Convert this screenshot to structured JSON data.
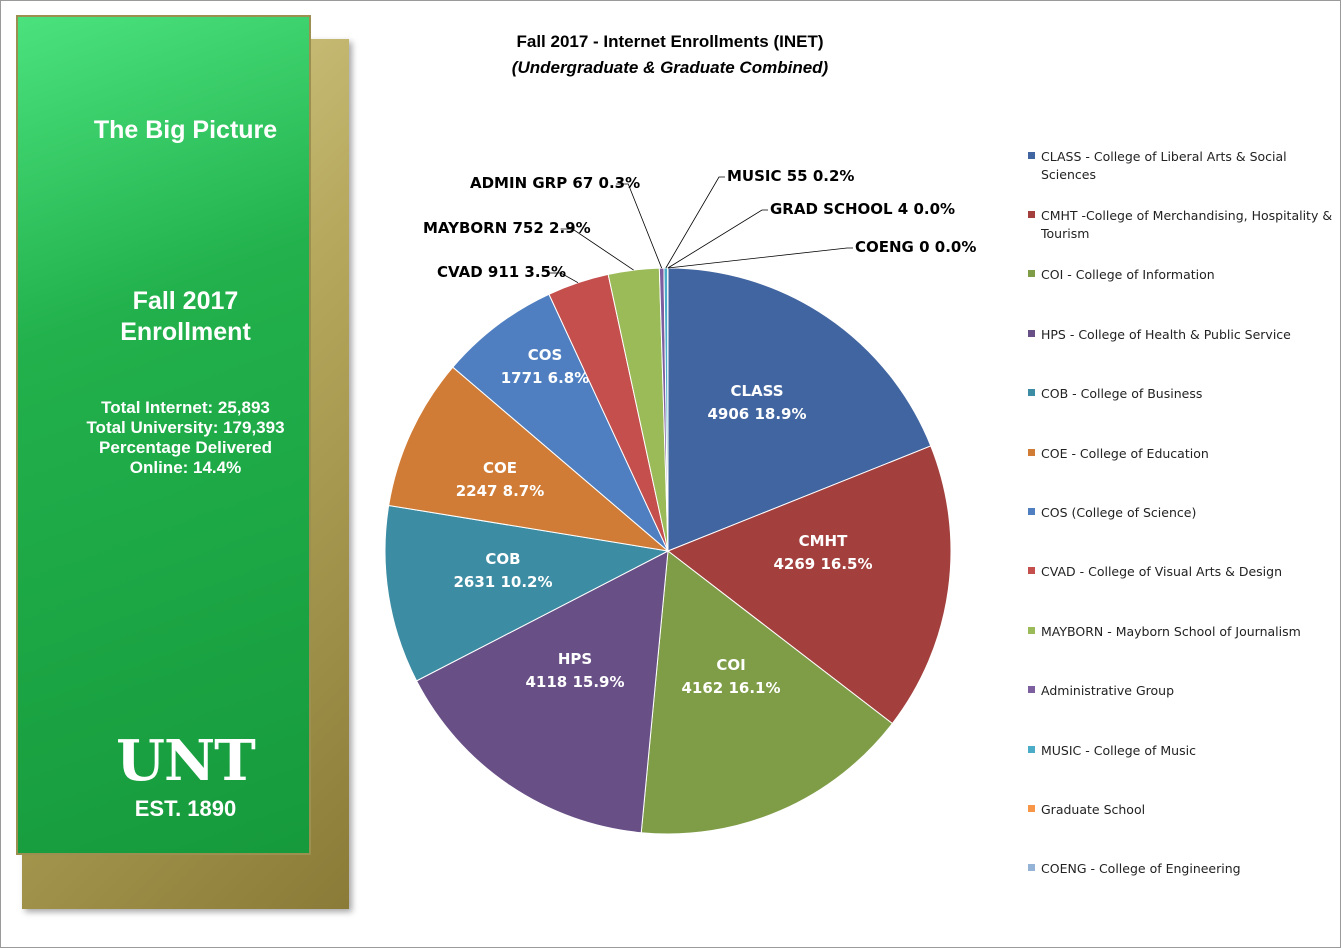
{
  "panel": {
    "heading": "The Big Picture",
    "subtitle_line1": "Fall 2017",
    "subtitle_line2": "Enrollment",
    "stat_internet": "Total Internet:  25,893",
    "stat_university": "Total University: 179,393",
    "stat_percent_line1": "Percentage Delivered",
    "stat_percent_line2": "Online: 14.4%",
    "logo_text": "UNT",
    "logo_est": "EST. 1890"
  },
  "chart_data": {
    "type": "pie",
    "title": "Fall 2017 - Internet Enrollments (INET)",
    "subtitle": "(Undergraduate & Graduate Combined)",
    "legend_position": "right",
    "slices": [
      {
        "name": "CLASS",
        "value": 4906,
        "percent": "18.9%",
        "legend": "CLASS - College of Liberal Arts & Social Sciences",
        "color": "#4165a0",
        "label_line1": "CLASS",
        "label_line2": "4906 18.9%"
      },
      {
        "name": "CMHT",
        "value": 4269,
        "percent": "16.5%",
        "legend": "CMHT -College of Merchandising, Hospitality & Tourism",
        "color": "#a3403e",
        "label_line1": "CMHT",
        "label_line2": "4269 16.5%"
      },
      {
        "name": "COI",
        "value": 4162,
        "percent": "16.1%",
        "legend": "COI - College of Information",
        "color": "#7f9c47",
        "label_line1": "COI",
        "label_line2": "4162 16.1%"
      },
      {
        "name": "HPS",
        "value": 4118,
        "percent": "15.9%",
        "legend": "HPS - College of Health & Public Service",
        "color": "#684f86",
        "label_line1": "HPS",
        "label_line2": "4118 15.9%"
      },
      {
        "name": "COB",
        "value": 2631,
        "percent": "10.2%",
        "legend": "COB - College of Business",
        "color": "#3c8ca3",
        "label_line1": "COB",
        "label_line2": "2631 10.2%"
      },
      {
        "name": "COE",
        "value": 2247,
        "percent": "8.7%",
        "legend": "COE - College of Education",
        "color": "#d07c36",
        "label_line1": "COE",
        "label_line2": "2247 8.7%"
      },
      {
        "name": "COS",
        "value": 1771,
        "percent": "6.8%",
        "legend": "COS (College of Science)",
        "color": "#4f7fc1",
        "label_line1": "COS",
        "label_line2": "1771 6.8%"
      },
      {
        "name": "CVAD",
        "value": 911,
        "percent": "3.5%",
        "legend": "CVAD - College of Visual Arts & Design",
        "color": "#c44f4c",
        "label_line1": "CVAD 911 3.5%",
        "label_line2": ""
      },
      {
        "name": "MAYBORN",
        "value": 752,
        "percent": "2.9%",
        "legend": "MAYBORN - Mayborn School of Journalism",
        "color": "#9bbb59",
        "label_line1": "MAYBORN 752 2.9%",
        "label_line2": ""
      },
      {
        "name": "ADMIN GRP",
        "value": 67,
        "percent": "0.3%",
        "legend": "Administrative Group",
        "color": "#7d5fa0",
        "label_line1": "ADMIN GRP 67 0.3%",
        "label_line2": ""
      },
      {
        "name": "MUSIC",
        "value": 55,
        "percent": "0.2%",
        "legend": "MUSIC - College of Music",
        "color": "#4aacc6",
        "label_line1": "MUSIC 55 0.2%",
        "label_line2": ""
      },
      {
        "name": "GRAD SCHOOL",
        "value": 4,
        "percent": "0.0%",
        "legend": "Graduate School",
        "color": "#f79646",
        "label_line1": "GRAD SCHOOL 4 0.0%",
        "label_line2": ""
      },
      {
        "name": "COENG",
        "value": 0,
        "percent": "0.0%",
        "legend": "COENG - College of Engineering",
        "color": "#95b3d7",
        "label_line1": "COENG 0 0.0%",
        "label_line2": ""
      }
    ]
  }
}
